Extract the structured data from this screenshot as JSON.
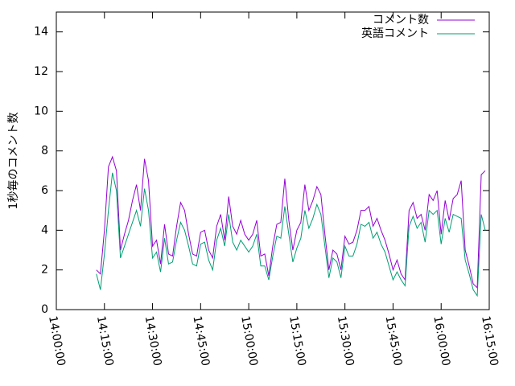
{
  "chart_data": {
    "type": "line",
    "y_label": "1秒毎のコメント数",
    "x": [
      "14:12:30",
      "14:13:45",
      "14:15:00",
      "14:16:15",
      "14:17:30",
      "14:18:45",
      "14:20:00",
      "14:21:15",
      "14:22:30",
      "14:23:45",
      "14:25:00",
      "14:26:15",
      "14:27:30",
      "14:28:45",
      "14:30:00",
      "14:31:15",
      "14:32:30",
      "14:33:45",
      "14:35:00",
      "14:36:15",
      "14:37:30",
      "14:38:45",
      "14:40:00",
      "14:41:15",
      "14:42:30",
      "14:43:45",
      "14:45:00",
      "14:46:15",
      "14:47:30",
      "14:48:45",
      "14:50:00",
      "14:51:15",
      "14:52:30",
      "14:53:45",
      "14:55:00",
      "14:56:15",
      "14:57:30",
      "14:58:45",
      "15:00:00",
      "15:01:15",
      "15:02:30",
      "15:03:45",
      "15:05:00",
      "15:06:15",
      "15:07:30",
      "15:08:45",
      "15:10:00",
      "15:11:15",
      "15:12:30",
      "15:13:45",
      "15:15:00",
      "15:16:15",
      "15:17:30",
      "15:18:45",
      "15:20:00",
      "15:21:15",
      "15:22:30",
      "15:23:45",
      "15:25:00",
      "15:26:15",
      "15:27:30",
      "15:28:45",
      "15:30:00",
      "15:31:15",
      "15:32:30",
      "15:33:45",
      "15:35:00",
      "15:36:15",
      "15:37:30",
      "15:38:45",
      "15:40:00",
      "15:41:15",
      "15:42:30",
      "15:43:45",
      "15:45:00",
      "15:46:15",
      "15:47:30",
      "15:48:45",
      "15:50:00",
      "15:51:15",
      "15:52:30",
      "15:53:45",
      "15:55:00",
      "15:56:15",
      "15:57:30",
      "15:58:45",
      "16:00:00",
      "16:01:15",
      "16:02:30",
      "16:03:45",
      "16:05:00",
      "16:06:15",
      "16:07:30",
      "16:08:45",
      "16:10:00",
      "16:11:15",
      "16:12:30",
      "16:13:45"
    ],
    "series": [
      {
        "name": "コメント数",
        "color": "#9400d3",
        "values": [
          2.0,
          1.8,
          4,
          7.2,
          7.7,
          7,
          3,
          3.8,
          4.5,
          5.5,
          6.3,
          5,
          7.6,
          6.5,
          3.2,
          3.5,
          2.3,
          4.3,
          2.8,
          2.7,
          4.2,
          5.4,
          5,
          3.8,
          2.8,
          2.7,
          3.9,
          4,
          3,
          2.6,
          4.2,
          4.8,
          3.5,
          5.7,
          4.2,
          3.8,
          4.5,
          3.8,
          3.5,
          3.8,
          4.5,
          2.7,
          2.8,
          1.7,
          3.2,
          4.3,
          4.4,
          6.6,
          4.5,
          3,
          4,
          4.4,
          6.3,
          5,
          5.5,
          6.2,
          5.8,
          3.8,
          2,
          3,
          2.8,
          2,
          3.7,
          3.3,
          3.4,
          4,
          5,
          5,
          5.2,
          4.2,
          4.6,
          4,
          3.5,
          2.8,
          2,
          2.5,
          1.8,
          1.5,
          5,
          5.4,
          4.6,
          4.8,
          4,
          5.8,
          5.5,
          6,
          3.8,
          5.5,
          4.5,
          5.6,
          5.8,
          6.5,
          3,
          2.2,
          1.3,
          1.1,
          6.8,
          7.0
        ]
      },
      {
        "name": "英語コメント",
        "color": "#009e73",
        "values": [
          1.8,
          1.0,
          2.8,
          5,
          6.9,
          6,
          2.6,
          3.2,
          3.8,
          4.4,
          5,
          4.2,
          6.1,
          5,
          2.6,
          2.9,
          1.9,
          3.6,
          2.3,
          2.4,
          3.5,
          4.4,
          4,
          3.2,
          2.3,
          2.2,
          3.3,
          3.4,
          2.5,
          2,
          3.5,
          4.1,
          3.2,
          4.8,
          3.4,
          3,
          3.5,
          3.2,
          2.9,
          3.2,
          3.8,
          2.2,
          2.2,
          1.5,
          2.7,
          3.7,
          3.6,
          5.2,
          3.8,
          2.4,
          3.1,
          3.6,
          5,
          4.1,
          4.6,
          5.3,
          4.8,
          3.2,
          1.6,
          2.6,
          2.4,
          1.6,
          3.2,
          2.7,
          2.7,
          3.3,
          4.3,
          4.2,
          4.4,
          3.6,
          3.9,
          3.3,
          2.9,
          2.2,
          1.5,
          1.9,
          1.5,
          1.2,
          4.2,
          4.7,
          4.1,
          4.4,
          3.4,
          5,
          4.8,
          5,
          3.3,
          4.6,
          3.9,
          4.8,
          4.7,
          4.6,
          2.5,
          1.8,
          1,
          0.7,
          4.8,
          4.0
        ]
      }
    ],
    "xlim": [
      "14:00:00",
      "16:15:00"
    ],
    "xticks": [
      "14:00:00",
      "14:15:00",
      "14:30:00",
      "14:45:00",
      "15:00:00",
      "15:15:00",
      "15:30:00",
      "15:45:00",
      "16:00:00",
      "16:15:00"
    ],
    "ylim": [
      0,
      15
    ],
    "yticks": [
      0,
      2,
      4,
      6,
      8,
      10,
      12,
      14
    ],
    "legend": "top-right",
    "grid": false
  }
}
